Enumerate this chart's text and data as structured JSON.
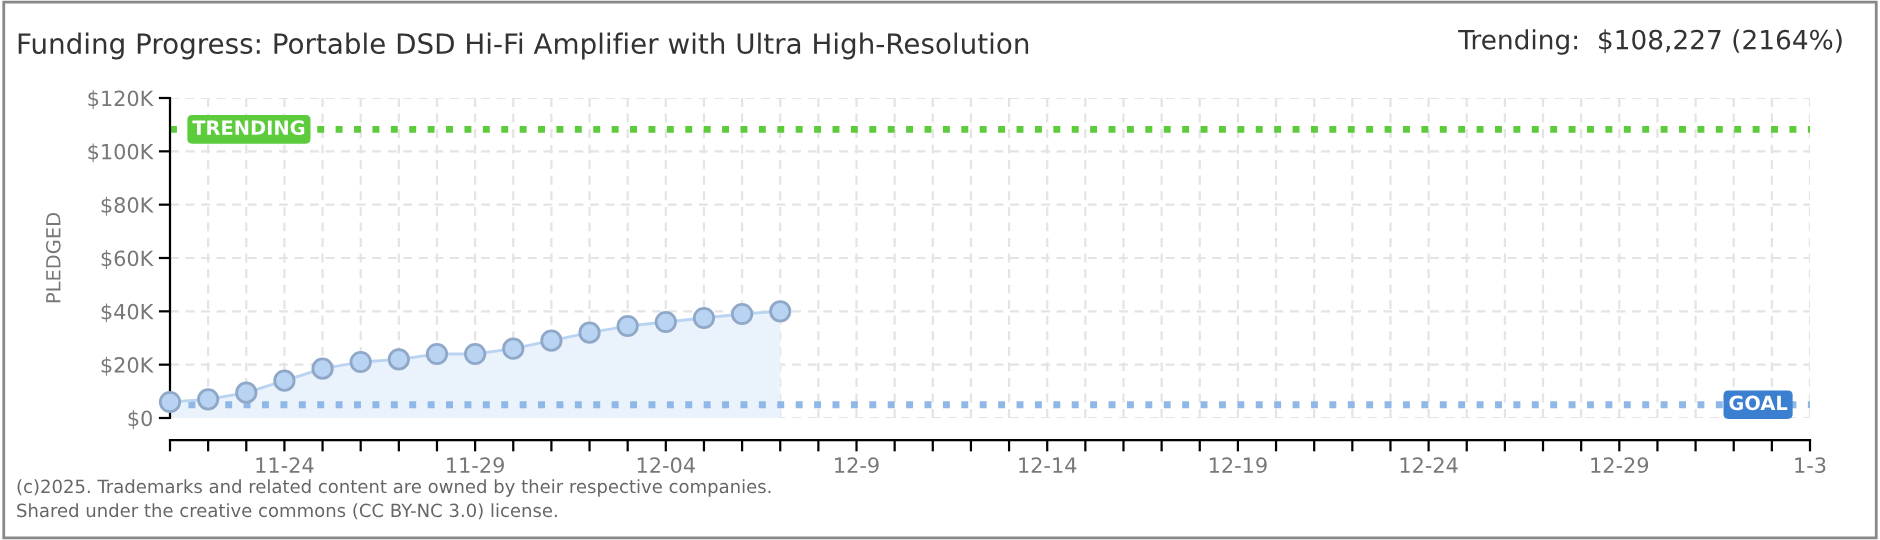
{
  "chart_data": {
    "type": "area",
    "title": "Funding Progress: Portable DSD Hi-Fi Amplifier with Ultra High-Resolution",
    "subtitle": "Trending:  $108,227 (2164%)",
    "ylabel": "PLEDGED",
    "x": [
      "2024-11-21",
      "2024-11-22",
      "2024-11-23",
      "2024-11-24",
      "2024-11-25",
      "2024-11-26",
      "2024-11-27",
      "2024-11-28",
      "2024-11-29",
      "2024-11-30",
      "2024-12-01",
      "2024-12-02",
      "2024-12-03",
      "2024-12-04",
      "2024-12-05",
      "2024-12-06",
      "2024-12-07"
    ],
    "series": [
      {
        "color": "#b9d4f2",
        "values": [
          6000,
          7000,
          9500,
          14000,
          18500,
          21000,
          22000,
          24000,
          24000,
          26000,
          29000,
          32000,
          34500,
          36000,
          37500,
          39000,
          40000
        ]
      }
    ],
    "marker": "circle",
    "grid": true,
    "ylim": [
      0,
      120000
    ],
    "yticks": [
      {
        "value": 0,
        "label": "$0"
      },
      {
        "value": 20000,
        "label": "$20K"
      },
      {
        "value": 40000,
        "label": "$40K"
      },
      {
        "value": 60000,
        "label": "$60K"
      },
      {
        "value": 80000,
        "label": "$80K"
      },
      {
        "value": 100000,
        "label": "$100K"
      },
      {
        "value": 120000,
        "label": "$120K"
      }
    ],
    "xlim": [
      "2024-11-21",
      "2025-01-03"
    ],
    "xticks": [
      {
        "value": "2024-11-21",
        "label": null
      },
      {
        "value": "2024-11-22",
        "label": null
      },
      {
        "value": "2024-11-23",
        "label": null
      },
      {
        "value": "2024-11-24",
        "label": "11-24"
      },
      {
        "value": "2024-11-25",
        "label": null
      },
      {
        "value": "2024-11-26",
        "label": null
      },
      {
        "value": "2024-11-27",
        "label": null
      },
      {
        "value": "2024-11-28",
        "label": null
      },
      {
        "value": "2024-11-29",
        "label": "11-29"
      },
      {
        "value": "2024-11-30",
        "label": null
      },
      {
        "value": "2024-12-01",
        "label": null
      },
      {
        "value": "2024-12-02",
        "label": null
      },
      {
        "value": "2024-12-03",
        "label": null
      },
      {
        "value": "2024-12-04",
        "label": "12-04"
      },
      {
        "value": "2024-12-05",
        "label": null
      },
      {
        "value": "2024-12-06",
        "label": null
      },
      {
        "value": "2024-12-07",
        "label": null
      },
      {
        "value": "2024-12-08",
        "label": null
      },
      {
        "value": "2024-12-09",
        "label": "12-9"
      },
      {
        "value": "2024-12-10",
        "label": null
      },
      {
        "value": "2024-12-11",
        "label": null
      },
      {
        "value": "2024-12-12",
        "label": null
      },
      {
        "value": "2024-12-13",
        "label": null
      },
      {
        "value": "2024-12-14",
        "label": "12-14"
      },
      {
        "value": "2024-12-15",
        "label": null
      },
      {
        "value": "2024-12-16",
        "label": null
      },
      {
        "value": "2024-12-17",
        "label": null
      },
      {
        "value": "2024-12-18",
        "label": null
      },
      {
        "value": "2024-12-19",
        "label": "12-19"
      },
      {
        "value": "2024-12-20",
        "label": null
      },
      {
        "value": "2024-12-21",
        "label": null
      },
      {
        "value": "2024-12-22",
        "label": null
      },
      {
        "value": "2024-12-23",
        "label": null
      },
      {
        "value": "2024-12-24",
        "label": "12-24"
      },
      {
        "value": "2024-12-25",
        "label": null
      },
      {
        "value": "2024-12-26",
        "label": null
      },
      {
        "value": "2024-12-27",
        "label": null
      },
      {
        "value": "2024-12-28",
        "label": null
      },
      {
        "value": "2024-12-29",
        "label": "12-29"
      },
      {
        "value": "2024-12-30",
        "label": null
      },
      {
        "value": "2024-12-31",
        "label": null
      },
      {
        "value": "2025-01-01",
        "label": null
      },
      {
        "value": "2025-01-02",
        "label": null
      },
      {
        "value": "2025-01-03",
        "label": "1-3"
      }
    ],
    "ref_lines": [
      {
        "axis": "y",
        "value": 108227,
        "label": "TRENDING",
        "color": "#5ccc3c",
        "line_style": "dotted"
      },
      {
        "axis": "y",
        "value": 5000,
        "label": "GOAL",
        "color": "#8fb8e8",
        "line_style": "dotted"
      }
    ],
    "annotations": [
      "(c)2025. Trademarks and related content are owned by their respective companies.",
      "Shared under the creative commons (CC BY-NC 3.0) license."
    ]
  }
}
